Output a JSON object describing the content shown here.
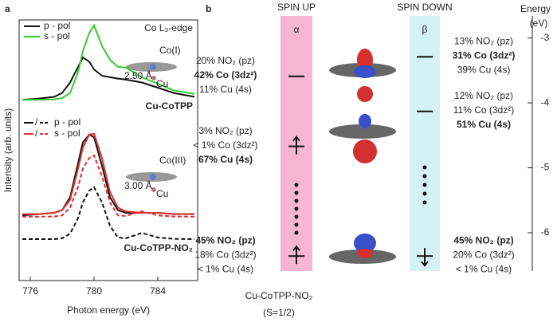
{
  "chart_data": [
    {
      "type": "line",
      "panel_label": "a",
      "annotation": "Co L₃-edge",
      "xlabel": "Photon energy (eV)",
      "ylabel": "Intensity (arb. units)",
      "xlim": [
        775.3,
        786.5
      ],
      "xticks": [
        776,
        780,
        784
      ],
      "ylim": [
        0,
        100
      ],
      "x": [
        775.5,
        776.5,
        777.5,
        778,
        778.5,
        779,
        779.3,
        779.7,
        780,
        780.5,
        781,
        781.5,
        782,
        783,
        784,
        785,
        786.3
      ],
      "series": [
        {
          "color": "#111111",
          "dash": false,
          "values": [
            69.4,
            69.8,
            70.5,
            72,
            76,
            82,
            85.6,
            84,
            81,
            78.6,
            78,
            77.5,
            77.1,
            76,
            74,
            72,
            70.5
          ]
        },
        {
          "color": "#33cc33",
          "dash": false,
          "values": [
            69.4,
            69.4,
            69.5,
            70,
            72,
            80,
            88,
            95,
            97.9,
            90,
            84.7,
            82,
            81.7,
            78,
            75.5,
            73,
            71.6
          ]
        },
        {
          "color": "#111111",
          "dash": false,
          "values": [
            25,
            25.5,
            26,
            27,
            32,
            45,
            53,
            56,
            55,
            44,
            32,
            27,
            26,
            26,
            26,
            25.5,
            25.5
          ]
        },
        {
          "color": "#e03030",
          "dash": false,
          "values": [
            25.5,
            25.5,
            26,
            27,
            31,
            43,
            51,
            56,
            56.3,
            47,
            34,
            28,
            26.5,
            26,
            26,
            25.5,
            25.5
          ]
        },
        {
          "color": "#111111",
          "dash": true,
          "values": [
            15.9,
            15.9,
            15.9,
            16.2,
            18,
            24,
            30,
            34.5,
            35.8,
            30,
            21,
            16.5,
            16.2,
            18.3,
            16.5,
            16,
            15.9
          ]
        },
        {
          "color": "#e03030",
          "dash": true,
          "values": [
            24.5,
            24.5,
            24.6,
            25,
            28,
            36,
            43,
            47,
            48,
            40,
            30,
            25,
            24.8,
            26.6,
            25,
            24.6,
            24.5
          ]
        }
      ],
      "legend_top": [
        {
          "name": "p - pol",
          "color": "#111111"
        },
        {
          "name": "s - pol",
          "color": "#33cc33"
        }
      ],
      "legend_bottom": [
        {
          "name": "p - pol",
          "separator": "/",
          "color": "#111111"
        },
        {
          "name": "s - pol",
          "separator": "/",
          "color": "#e03030"
        }
      ],
      "samples": [
        "Cu-CoTPP",
        "Cu-CoTPP-NO₂"
      ],
      "insets": [
        {
          "site": "Co(I)",
          "atom": "Cu",
          "distance": "2.50 Å"
        },
        {
          "site": "Co(III)",
          "atom": "Cu",
          "distance": "3.00 Å"
        }
      ]
    },
    {
      "type": "levels",
      "panel_label": "b",
      "ylabel": "Energy",
      "yunit": "(eV)",
      "ylim": [
        -6.59,
        -2.66
      ],
      "yticks": [
        -3,
        -4,
        -5,
        -6
      ],
      "title": "Cu-CoTPP-NO₂",
      "subtitle": "(S=1/2)",
      "columns": [
        {
          "header": "SPIN UP",
          "symbol": "α",
          "color": "#f7b6cf",
          "spin": "up",
          "levels": [
            {
              "energy": -3.59,
              "electron": false,
              "lines": [
                {
                  "text": "20% NO₂ (pz)",
                  "style": "normal"
                },
                {
                  "text": "42% Co (3dz²)",
                  "style": "bold"
                },
                {
                  "text": "11% Cu (4s)",
                  "style": "normal"
                }
              ]
            },
            {
              "energy": -4.67,
              "electron": true,
              "lines": [
                {
                  "text": "3% NO₂ (pz)",
                  "style": "normal"
                },
                {
                  "text": "< 1% Co (3dz²)",
                  "style": "faint"
                },
                {
                  "text": "67% Cu (4s)",
                  "style": "bold"
                }
              ]
            },
            {
              "energy": -6.36,
              "electron": true,
              "lines": [
                {
                  "text": "45% NO₂ (pz)",
                  "style": "bold"
                },
                {
                  "text": "18% Co (3dz²)",
                  "style": "normal"
                },
                {
                  "text": "< 1% Cu (4s)",
                  "style": "faint"
                }
              ]
            }
          ]
        },
        {
          "header": "SPIN DOWN",
          "symbol": "β",
          "color": "#d4f1f6",
          "spin": "down",
          "levels": [
            {
              "energy": -3.29,
              "electron": false,
              "lines": [
                {
                  "text": "13% NO₂ (pz)",
                  "style": "normal"
                },
                {
                  "text": "31% Co (3dz²)",
                  "style": "bold"
                },
                {
                  "text": "39% Cu (4s)",
                  "style": "normal"
                }
              ]
            },
            {
              "energy": -4.13,
              "electron": false,
              "lines": [
                {
                  "text": "12% NO₂ (pz)",
                  "style": "normal"
                },
                {
                  "text": "11% Co (3dz²)",
                  "style": "normal"
                },
                {
                  "text": "51% Cu (4s)",
                  "style": "bold"
                }
              ]
            },
            {
              "energy": -6.36,
              "electron": true,
              "lines": [
                {
                  "text": "45% NO₂ (pz)",
                  "style": "bold"
                },
                {
                  "text": "20% Co (3dz²)",
                  "style": "normal"
                },
                {
                  "text": "< 1% Cu (4s)",
                  "style": "faint"
                }
              ]
            }
          ]
        }
      ]
    }
  ]
}
